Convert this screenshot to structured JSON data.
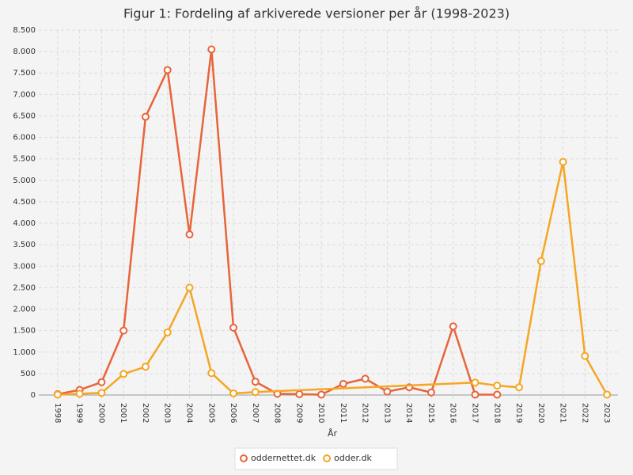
{
  "chart_data": {
    "type": "line",
    "title": "Figur 1: Fordeling af arkiverede versioner per år (1998-2023)",
    "x_label": "År",
    "categories": [
      "1998",
      "1999",
      "2000",
      "2001",
      "2002",
      "2003",
      "2004",
      "2005",
      "2006",
      "2007",
      "2008",
      "2009",
      "2010",
      "2011",
      "2012",
      "2013",
      "2014",
      "2015",
      "2016",
      "2017",
      "2018",
      "2019",
      "2020",
      "2021",
      "2022",
      "2023"
    ],
    "series": [
      {
        "name": "oddernettet.dk",
        "color": "#e8643a",
        "values": [
          20,
          120,
          300,
          1500,
          6480,
          7570,
          3740,
          8050,
          1570,
          310,
          30,
          20,
          10,
          260,
          380,
          80,
          180,
          60,
          1600,
          10,
          10,
          null,
          null,
          null,
          null,
          null
        ]
      },
      {
        "name": "odder.dk",
        "color": "#f5a623",
        "values": [
          10,
          30,
          50,
          490,
          660,
          1460,
          2500,
          510,
          40,
          70,
          null,
          null,
          null,
          null,
          null,
          null,
          null,
          null,
          null,
          290,
          220,
          180,
          3120,
          5430,
          910,
          10
        ]
      }
    ],
    "span_gaps": true,
    "ylim": [
      0,
      8500
    ],
    "yticks": [
      0,
      500,
      {
        "value": 1000,
        "label": "1.000"
      },
      {
        "value": 1500,
        "label": "1.500"
      },
      {
        "value": 2000,
        "label": "2.000"
      },
      {
        "value": 2500,
        "label": "2.500"
      },
      {
        "value": 3000,
        "label": "3.000"
      },
      {
        "value": 3500,
        "label": "3.500"
      },
      {
        "value": 4000,
        "label": "4.000"
      },
      {
        "value": 4500,
        "label": "4.500"
      },
      {
        "value": 5000,
        "label": "5.000"
      },
      {
        "value": 5500,
        "label": "5.500"
      },
      {
        "value": 6000,
        "label": "6.000"
      },
      {
        "value": 6500,
        "label": "6.500"
      },
      {
        "value": 7000,
        "label": "7.000"
      },
      {
        "value": 7500,
        "label": "7.500"
      },
      {
        "value": 8000,
        "label": "8.000"
      },
      {
        "value": 8500,
        "label": "8.500"
      }
    ],
    "grid": true
  }
}
